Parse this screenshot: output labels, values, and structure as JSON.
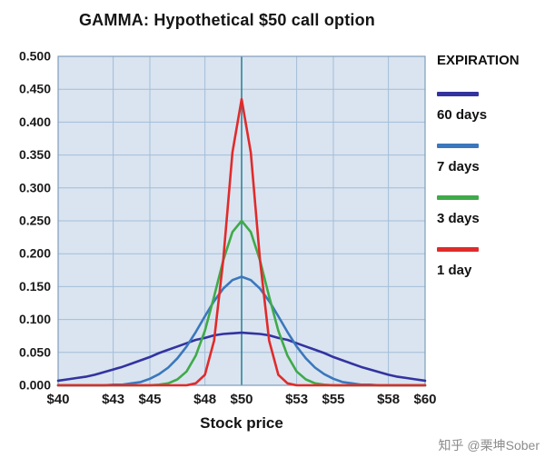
{
  "title": "GAMMA: Hypothetical $50 call option",
  "xlabel": "Stock price",
  "legend": {
    "title": "EXPIRATION",
    "entries": [
      {
        "label": "60 days",
        "color": "#3333a0"
      },
      {
        "label": "7 days",
        "color": "#3b77bc"
      },
      {
        "label": "3 days",
        "color": "#3faa49"
      },
      {
        "label": "1 day",
        "color": "#e02b2b"
      }
    ]
  },
  "watermark": "知乎 @栗坤Sober",
  "colors": {
    "plot_bg": "#d9e4f0",
    "grid": "#a3bdd8",
    "border": "#7f9db9",
    "center_line": "#31849b",
    "text": "#1a1a1a"
  },
  "chart_data": {
    "type": "line",
    "title": "GAMMA: Hypothetical $50 call option",
    "xlabel": "Stock price",
    "ylabel": "",
    "xlim": [
      40,
      60
    ],
    "ylim": [
      0,
      0.5
    ],
    "x_ticks": [
      40,
      43,
      45,
      48,
      50,
      53,
      55,
      58,
      60
    ],
    "x_tick_prefix": "$",
    "y_tick_step": 0.05,
    "grid": true,
    "legend_position": "right",
    "center_line_x": 50,
    "x": [
      40,
      40.5,
      41,
      41.5,
      42,
      42.5,
      43,
      43.5,
      44,
      44.5,
      45,
      45.5,
      46,
      46.5,
      47,
      47.5,
      48,
      48.5,
      49,
      49.5,
      50,
      50.5,
      51,
      51.5,
      52,
      52.5,
      53,
      53.5,
      54,
      54.5,
      55,
      55.5,
      56,
      56.5,
      57,
      57.5,
      58,
      58.5,
      59,
      59.5,
      60
    ],
    "series": [
      {
        "name": "60 days",
        "color": "#3333a0",
        "values": [
          0.007,
          0.009,
          0.011,
          0.013,
          0.016,
          0.02,
          0.024,
          0.028,
          0.033,
          0.038,
          0.043,
          0.049,
          0.054,
          0.059,
          0.064,
          0.069,
          0.072,
          0.076,
          0.078,
          0.079,
          0.08,
          0.079,
          0.078,
          0.076,
          0.072,
          0.069,
          0.064,
          0.059,
          0.054,
          0.049,
          0.043,
          0.038,
          0.033,
          0.028,
          0.024,
          0.02,
          0.016,
          0.013,
          0.011,
          0.009,
          0.007
        ]
      },
      {
        "name": "7 days",
        "color": "#3b77bc",
        "values": [
          0.0,
          0.0,
          0.0,
          0.0,
          0.0,
          0.0,
          0.001,
          0.001,
          0.003,
          0.005,
          0.01,
          0.017,
          0.027,
          0.041,
          0.059,
          0.081,
          0.105,
          0.128,
          0.147,
          0.16,
          0.165,
          0.16,
          0.147,
          0.128,
          0.105,
          0.081,
          0.059,
          0.041,
          0.027,
          0.017,
          0.01,
          0.005,
          0.003,
          0.001,
          0.001,
          0.0,
          0.0,
          0.0,
          0.0,
          0.0,
          0.0
        ]
      },
      {
        "name": "3 days",
        "color": "#3faa49",
        "values": [
          0.0,
          0.0,
          0.0,
          0.0,
          0.0,
          0.0,
          0.0,
          0.0,
          0.0,
          0.0,
          0.0,
          0.001,
          0.003,
          0.009,
          0.021,
          0.045,
          0.083,
          0.135,
          0.19,
          0.233,
          0.25,
          0.233,
          0.19,
          0.135,
          0.083,
          0.045,
          0.021,
          0.009,
          0.003,
          0.001,
          0.0,
          0.0,
          0.0,
          0.0,
          0.0,
          0.0,
          0.0,
          0.0,
          0.0,
          0.0,
          0.0
        ]
      },
      {
        "name": "1 day",
        "color": "#e02b2b",
        "values": [
          0.0,
          0.0,
          0.0,
          0.0,
          0.0,
          0.0,
          0.0,
          0.0,
          0.0,
          0.0,
          0.0,
          0.0,
          0.0,
          0.0,
          0.0,
          0.003,
          0.016,
          0.068,
          0.191,
          0.354,
          0.435,
          0.354,
          0.191,
          0.068,
          0.016,
          0.003,
          0.0,
          0.0,
          0.0,
          0.0,
          0.0,
          0.0,
          0.0,
          0.0,
          0.0,
          0.0,
          0.0,
          0.0,
          0.0,
          0.0,
          0.0
        ]
      }
    ]
  }
}
